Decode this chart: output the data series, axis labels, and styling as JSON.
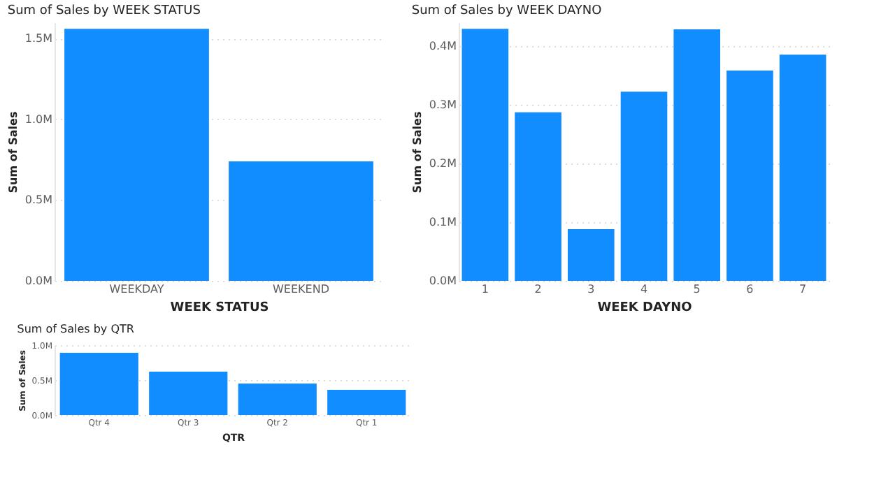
{
  "chart_data": [
    {
      "type": "bar",
      "title": "Sum of Sales by WEEK STATUS",
      "xlabel": "WEEK STATUS",
      "ylabel": "Sum of Sales",
      "categories": [
        "WEEKDAY",
        "WEEKEND"
      ],
      "values": [
        1.56,
        0.74
      ],
      "color": "#118dff",
      "ylim": [
        0,
        1.6
      ],
      "yticks": [
        {
          "value": 0,
          "label": "0.0M"
        },
        {
          "value": 0.5,
          "label": "0.5M"
        },
        {
          "value": 1.0,
          "label": "1.0M"
        },
        {
          "value": 1.5,
          "label": "1.5M"
        }
      ],
      "grid": "y"
    },
    {
      "type": "bar",
      "title": "Sum of Sales by WEEK DAYNO",
      "xlabel": "WEEK DAYNO",
      "ylabel": "Sum of Sales",
      "categories": [
        "1",
        "2",
        "3",
        "4",
        "5",
        "6",
        "7"
      ],
      "values": [
        0.429,
        0.287,
        0.088,
        0.322,
        0.428,
        0.358,
        0.385
      ],
      "color": "#118dff",
      "ylim": [
        0,
        0.44
      ],
      "yticks": [
        {
          "value": 0,
          "label": "0.0M"
        },
        {
          "value": 0.1,
          "label": "0.1M"
        },
        {
          "value": 0.2,
          "label": "0.2M"
        },
        {
          "value": 0.3,
          "label": "0.3M"
        },
        {
          "value": 0.4,
          "label": "0.4M"
        }
      ],
      "grid": "y"
    },
    {
      "type": "bar",
      "title": "Sum of Sales by QTR",
      "xlabel": "QTR",
      "ylabel": "Sum of Sales",
      "categories": [
        "Qtr 4",
        "Qtr 3",
        "Qtr 2",
        "Qtr 1"
      ],
      "values": [
        0.89,
        0.62,
        0.45,
        0.36
      ],
      "color": "#118dff",
      "ylim": [
        0,
        1.0
      ],
      "yticks": [
        {
          "value": 0,
          "label": "0.0M"
        },
        {
          "value": 0.5,
          "label": "0.5M"
        },
        {
          "value": 1.0,
          "label": "1.0M"
        }
      ],
      "grid": "y"
    }
  ]
}
